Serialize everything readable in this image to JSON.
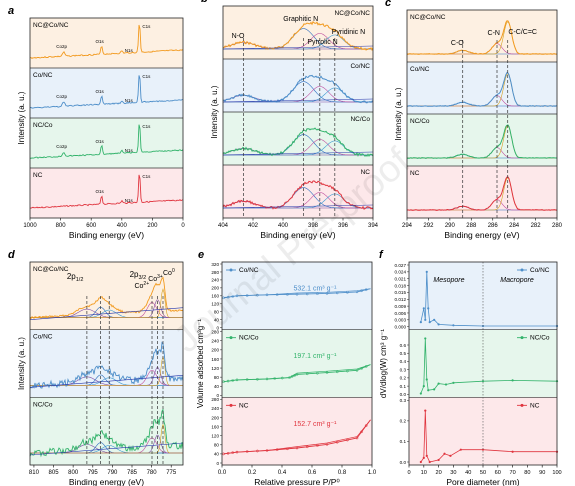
{
  "watermark": "Journal Pre-proof",
  "panels": {
    "a": {
      "letter": "a",
      "xlabel": "Binding energy (eV)",
      "ylabel": "Intensity (a. u.)",
      "xticks": [
        "1000",
        "800",
        "600",
        "400",
        "200",
        "0"
      ],
      "spectra": [
        {
          "label": "NC@Co/NC",
          "color": "#f29a1f",
          "fill": "#fdf0e2",
          "peaks": [
            "Co2p",
            "O1s",
            "N1s",
            "C1s"
          ]
        },
        {
          "label": "Co/NC",
          "color": "#4d8ec9",
          "fill": "#e8f1fa",
          "peaks": [
            "Co2p",
            "O1s",
            "N1s",
            "C1s"
          ]
        },
        {
          "label": "NC/Co",
          "color": "#33b36b",
          "fill": "#e6f6ec",
          "peaks": [
            "Co2p",
            "O1s",
            "N1s",
            "C1s"
          ]
        },
        {
          "label": "NC",
          "color": "#e0353f",
          "fill": "#fde8ea",
          "peaks": [
            "O1s",
            "N1s",
            "C1s"
          ]
        }
      ]
    },
    "b": {
      "letter": "b",
      "xlabel": "Binding energy (eV)",
      "ylabel": "Intensity (a. u.)",
      "xticks": [
        "404",
        "402",
        "400",
        "398",
        "396",
        "394"
      ],
      "annotations": [
        "N-O",
        "Graphitic N",
        "Pyrrolic N",
        "Pyridinic N"
      ],
      "spectra": [
        {
          "label": "NC@Co/NC",
          "color": "#f29a1f",
          "fill": "#fdf0e2"
        },
        {
          "label": "Co/NC",
          "color": "#4d8ec9",
          "fill": "#e8f1fa"
        },
        {
          "label": "NC/Co",
          "color": "#33b36b",
          "fill": "#e6f6ec"
        },
        {
          "label": "NC",
          "color": "#e0353f",
          "fill": "#fde8ea"
        }
      ]
    },
    "c": {
      "letter": "c",
      "xlabel": "Binding energy (eV)",
      "ylabel": "Intensity (a. u.)",
      "xticks": [
        "294",
        "292",
        "290",
        "288",
        "286",
        "284",
        "282",
        "280"
      ],
      "annotations": [
        "C-O",
        "C-N",
        "C-C/C=C"
      ],
      "spectra": [
        {
          "label": "NC@Co/NC",
          "color": "#f29a1f",
          "fill": "#fdf0e2"
        },
        {
          "label": "Co/NC",
          "color": "#4d8ec9",
          "fill": "#e8f1fa"
        },
        {
          "label": "NC/Co",
          "color": "#33b36b",
          "fill": "#e6f6ec"
        },
        {
          "label": "NC",
          "color": "#e0353f",
          "fill": "#fde8ea"
        }
      ]
    },
    "d": {
      "letter": "d",
      "xlabel": "Binding energy (eV)",
      "ylabel": "Intensity (a. u.)",
      "xticks": [
        "810",
        "805",
        "800",
        "795",
        "790",
        "785",
        "780",
        "775"
      ],
      "annotations": [
        "2p1/2",
        "2p3/2",
        "Co2+",
        "Co3+",
        "Co0"
      ],
      "spectra": [
        {
          "label": "NC@Co/NC",
          "color": "#f29a1f",
          "fill": "#fdf0e2"
        },
        {
          "label": "Co/NC",
          "color": "#4d8ec9",
          "fill": "#e8f1fa"
        },
        {
          "label": "NC/Co",
          "color": "#33b36b",
          "fill": "#e6f6ec"
        }
      ]
    },
    "e": {
      "letter": "e",
      "xlabel": "Relative pressure P/P⁰",
      "ylabel": "Volume adsorbed cm³g⁻¹",
      "xticks": [
        "0.0",
        "0.2",
        "0.4",
        "0.6",
        "0.8",
        "1.0"
      ],
      "subplots": [
        {
          "legend": "Co/NC",
          "color": "#4d8ec9",
          "fill": "#e8f1fa",
          "surface_area": "532.1 cm³ g⁻¹",
          "yticks": [
            "0",
            "40",
            "80",
            "120",
            "160",
            "200",
            "240",
            "280",
            "320"
          ]
        },
        {
          "legend": "NC/Co",
          "color": "#33b36b",
          "fill": "#e6f6ec",
          "surface_area": "197.1 cm³ g⁻¹",
          "yticks": [
            "0",
            "40",
            "80",
            "120",
            "160",
            "200",
            "240",
            "280"
          ]
        },
        {
          "legend": "NC",
          "color": "#e0353f",
          "fill": "#fde8ea",
          "surface_area": "152.7 cm³ g⁻¹",
          "yticks": [
            "0",
            "40",
            "80",
            "120",
            "160",
            "200",
            "240",
            "280"
          ]
        }
      ]
    },
    "f": {
      "letter": "f",
      "xlabel": "Pore diameter (nm)",
      "ylabel": "dV/dlog(W) cm³ g⁻¹",
      "xticks": [
        "0",
        "10",
        "20",
        "30",
        "40",
        "50",
        "60",
        "70",
        "80",
        "90",
        "100"
      ],
      "region_labels": [
        "Mesopore",
        "Macropore"
      ],
      "subplots": [
        {
          "legend": "Co/NC",
          "color": "#4d8ec9",
          "fill": "#e8f1fa",
          "yticks": [
            "0.000",
            "0.003",
            "0.006",
            "0.009",
            "0.012",
            "0.015",
            "0.018",
            "0.021",
            "0.024",
            "0.027"
          ]
        },
        {
          "legend": "NC/Co",
          "color": "#33b36b",
          "fill": "#e6f6ec",
          "yticks": [
            "0.0",
            "0.1",
            "0.2",
            "0.3",
            "0.4",
            "0.5",
            "0.6"
          ]
        },
        {
          "legend": "NC",
          "color": "#e0353f",
          "fill": "#fde8ea",
          "yticks": [
            "0.0",
            "0.1",
            "0.2",
            "0.3"
          ]
        }
      ]
    }
  },
  "chart_data": [
    {
      "type": "line",
      "panel": "a",
      "x_range": [
        1000,
        0
      ],
      "series": [
        {
          "name": "NC@Co/NC",
          "peaks_ev": {
            "Co2p": 780,
            "O1s": 532,
            "N1s": 400,
            "C1s": 285
          }
        },
        {
          "name": "Co/NC",
          "peaks_ev": {
            "Co2p": 780,
            "O1s": 532,
            "N1s": 400,
            "C1s": 285
          }
        },
        {
          "name": "NC/Co",
          "peaks_ev": {
            "Co2p": 780,
            "O1s": 532,
            "N1s": 400,
            "C1s": 285
          }
        },
        {
          "name": "NC",
          "peaks_ev": {
            "O1s": 532,
            "N1s": 400,
            "C1s": 285
          }
        }
      ]
    },
    {
      "type": "line",
      "panel": "b",
      "x_range": [
        404,
        393
      ],
      "components_ev": {
        "N-O": 402.5,
        "Graphitic N": 398.1,
        "Pyrrolic N": 396.9,
        "Pyridinic N": 395.8
      },
      "series": [
        {
          "name": "NC@Co/NC"
        },
        {
          "name": "Co/NC"
        },
        {
          "name": "NC/Co"
        },
        {
          "name": "NC"
        }
      ]
    },
    {
      "type": "line",
      "panel": "c",
      "x_range": [
        294,
        280
      ],
      "components_ev": {
        "C-O": 288.8,
        "C-N": 285.6,
        "C-C/C=C": 284.6
      },
      "series": [
        {
          "name": "NC@Co/NC"
        },
        {
          "name": "Co/NC"
        },
        {
          "name": "NC/Co"
        },
        {
          "name": "NC"
        }
      ]
    },
    {
      "type": "line",
      "panel": "d",
      "x_range": [
        811,
        772
      ],
      "components_ev": {
        "2p1/2 a": 796.5,
        "2p1/2 b": 793,
        "2p1/2 c": 790.8,
        "Co2+": 779.9,
        "Co3+": 778.5,
        "Co0": 777.1
      },
      "series": [
        {
          "name": "NC@Co/NC"
        },
        {
          "name": "Co/NC"
        },
        {
          "name": "NC/Co"
        }
      ]
    },
    {
      "type": "line",
      "panel": "e",
      "x_range": [
        0,
        1
      ],
      "series": [
        {
          "name": "Co/NC",
          "ylim": [
            0,
            320
          ],
          "adsorption": [
            [
              0.01,
              150
            ],
            [
              0.1,
              160
            ],
            [
              0.3,
              165
            ],
            [
              0.5,
              168
            ],
            [
              0.7,
              172
            ],
            [
              0.9,
              180
            ],
            [
              0.99,
              196
            ]
          ]
        },
        {
          "name": "NC/Co",
          "ylim": [
            0,
            280
          ],
          "adsorption": [
            [
              0.01,
              60
            ],
            [
              0.1,
              68
            ],
            [
              0.3,
              72
            ],
            [
              0.45,
              78
            ],
            [
              0.5,
              92
            ],
            [
              0.7,
              100
            ],
            [
              0.9,
              110
            ],
            [
              0.99,
              135
            ]
          ]
        },
        {
          "name": "NC",
          "ylim": [
            0,
            280
          ],
          "adsorption": [
            [
              0.01,
              40
            ],
            [
              0.1,
              48
            ],
            [
              0.3,
              55
            ],
            [
              0.5,
              66
            ],
            [
              0.7,
              82
            ],
            [
              0.9,
              110
            ],
            [
              0.99,
              190
            ]
          ]
        }
      ]
    },
    {
      "type": "line",
      "panel": "f",
      "x_range": [
        0,
        100
      ],
      "series": [
        {
          "name": "Co/NC",
          "ylim": [
            0,
            0.027
          ],
          "points": [
            [
              8,
              0.002
            ],
            [
              10,
              0.008
            ],
            [
              11,
              0.003
            ],
            [
              12,
              0.024
            ],
            [
              13,
              0.008
            ],
            [
              14,
              0.002
            ],
            [
              17,
              0.003
            ],
            [
              20,
              0.001
            ],
            [
              30,
              0.0006
            ],
            [
              50,
              0.0003
            ],
            [
              100,
              0.0003
            ]
          ]
        },
        {
          "name": "NC/Co",
          "ylim": [
            0,
            0.75
          ],
          "points": [
            [
              8,
              0.01
            ],
            [
              10,
              0.1
            ],
            [
              11,
              0.68
            ],
            [
              12,
              0.18
            ],
            [
              13,
              0.05
            ],
            [
              17,
              0.06
            ],
            [
              20,
              0.13
            ],
            [
              25,
              0.12
            ],
            [
              30,
              0.14
            ],
            [
              50,
              0.16
            ],
            [
              70,
              0.17
            ],
            [
              100,
              0.16
            ]
          ]
        },
        {
          "name": "NC",
          "ylim": [
            0,
            0.3
          ],
          "points": [
            [
              8,
              0.0
            ],
            [
              10,
              0.02
            ],
            [
              11,
              0.25
            ],
            [
              12,
              0.03
            ],
            [
              14,
              0.0
            ],
            [
              20,
              0.01
            ],
            [
              24,
              0.04
            ],
            [
              28,
              0.03
            ],
            [
              35,
              0.06
            ],
            [
              50,
              0.06
            ],
            [
              70,
              0.05
            ],
            [
              100,
              0.05
            ]
          ]
        }
      ]
    }
  ]
}
